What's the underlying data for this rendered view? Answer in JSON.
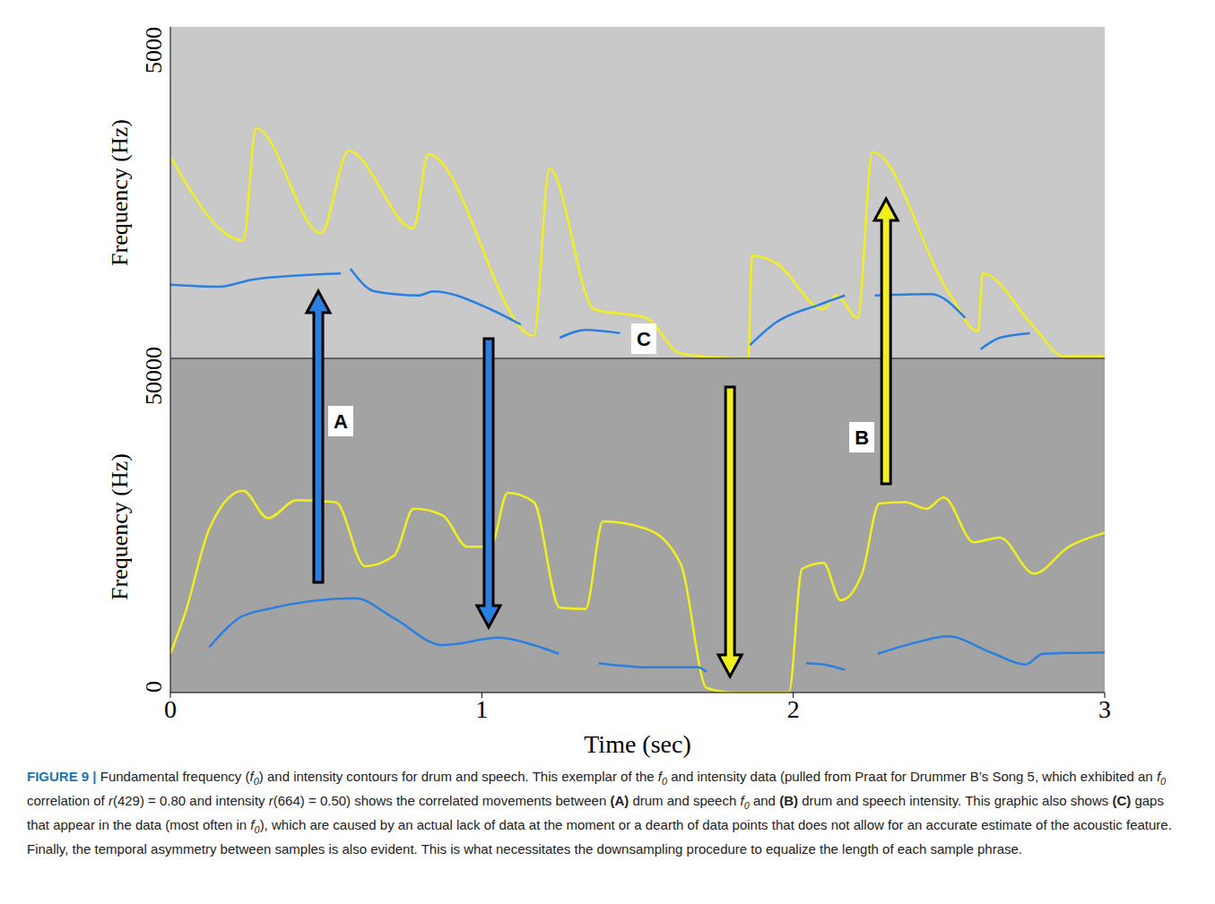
{
  "chart_data": [
    {
      "type": "line",
      "ylabel": "Frequency (Hz)",
      "xlim": [
        0,
        3
      ],
      "ylim": [
        0,
        5000
      ],
      "yticks": [
        0,
        5000
      ],
      "tick_labels": "y",
      "series": [
        {
          "color": "#f2ef1e",
          "segments": [
            {
              "x": [
                0,
                0.234,
                0.275,
                0.484,
                0.572,
                0.781,
                0.828,
                1.167,
                1.217,
                1.361,
                1.528,
                1.639,
                1.833,
                1.856,
                1.867,
                1.944,
                2.097,
                2.138,
                2.207,
                2.254,
                2.497,
                2.594,
                2.608,
                2.773,
                2.869,
                3
              ],
              "values": [
                3040,
                1780,
                3470,
                1890,
                3130,
                1960,
                3080,
                340,
                2860,
                740,
                610,
                70,
                0,
                0,
                1550,
                1440,
                740,
                950,
                610,
                3110,
                1010,
                410,
                1280,
                470,
                30,
                30
              ]
            }
          ]
        },
        {
          "color": "#2b7fe0",
          "segments": [
            {
              "x": [
                0,
                0.156,
                0.266,
                0.547
              ],
              "values": [
                1110,
                1080,
                1190,
                1280
              ]
            },
            {
              "x": [
                0.578,
                0.656,
                0.797,
                0.844,
                1.028,
                1.125
              ],
              "values": [
                1350,
                1010,
                950,
                1010,
                740,
                510
              ]
            },
            {
              "x": [
                1.25,
                1.333,
                1.444
              ],
              "values": [
                310,
                430,
                380
              ]
            },
            {
              "x": [
                1.861,
                1.944,
                2.083,
                2.166
              ],
              "values": [
                200,
                540,
                810,
                950
              ]
            },
            {
              "x": [
                2.262,
                2.442,
                2.552
              ],
              "values": [
                950,
                970,
                610
              ]
            },
            {
              "x": [
                2.602,
                2.663,
                2.76
              ],
              "values": [
                140,
                310,
                380
              ]
            }
          ]
        }
      ]
    },
    {
      "type": "line",
      "ylabel": "Frequency (Hz)",
      "xlabel": "Time (sec)",
      "xlim": [
        0,
        3
      ],
      "xticks": [
        0,
        1,
        2,
        3
      ],
      "ylim": [
        0,
        5000
      ],
      "yticks": [
        0,
        5000
      ],
      "series": [
        {
          "color": "#f2ef1e",
          "segments": [
            {
              "x": [
                0,
                0.047,
                0.125,
                0.234,
                0.313,
                0.406,
                0.531,
                0.625,
                0.719,
                0.781,
                0.875,
                0.953,
                1.028,
                1.083,
                1.167,
                1.25,
                1.333,
                1.389,
                1.528,
                1.639,
                1.722,
                1.806,
                1.986,
                2.028,
                2.097,
                2.152,
                2.221,
                2.276,
                2.359,
                2.428,
                2.483,
                2.58,
                2.663,
                2.773,
                2.884,
                3
              ],
              "values": [
                580,
                1180,
                2450,
                3020,
                2610,
                2880,
                2850,
                1890,
                2050,
                2750,
                2650,
                2180,
                2180,
                2990,
                2850,
                1270,
                1250,
                2560,
                2450,
                1920,
                70,
                0,
                0,
                1850,
                1940,
                1380,
                1780,
                2830,
                2850,
                2750,
                2920,
                2250,
                2320,
                1780,
                2180,
                2390
              ]
            }
          ]
        },
        {
          "color": "#2b7fe0",
          "segments": [
            {
              "x": [
                0.125,
                0.219,
                0.313,
                0.594,
                0.719,
                0.875,
                1.056,
                1.167,
                1.247
              ],
              "values": [
                680,
                1110,
                1250,
                1410,
                1110,
                710,
                820,
                710,
                580
              ]
            },
            {
              "x": [
                1.375,
                1.528,
                1.694,
                1.722
              ],
              "values": [
                440,
                380,
                380,
                310
              ]
            },
            {
              "x": [
                2.041,
                2.097,
                2.166
              ],
              "values": [
                440,
                420,
                340
              ]
            },
            {
              "x": [
                2.271,
                2.387,
                2.497,
                2.635,
                2.746,
                2.801,
                3
              ],
              "values": [
                580,
                740,
                840,
                600,
                420,
                580,
                600
              ]
            }
          ]
        }
      ]
    }
  ],
  "annotations": [
    "A",
    "B",
    "C"
  ],
  "caption": {
    "label": "FIGURE 9 |",
    "text": "Fundamental frequency (f0) and intensity contours for drum and speech. This exemplar of the f0 and intensity data (pulled from Praat for Drummer B’s Song 5, which exhibited an f0 correlation of r(429) = 0.80 and intensity r(664) = 0.50) shows the correlated movements between (A) drum and speech f0 and (B) drum and speech intensity. This graphic also shows (C) gaps that appear in the data (most often in f0), which are caused by an actual lack of data at the moment or a dearth of data points that does not allow for an accurate estimate of the acoustic feature. Finally, the temporal asymmetry between samples is also evident. This is what necessitates the downsampling procedure to equalize the length of each sample phrase."
  }
}
